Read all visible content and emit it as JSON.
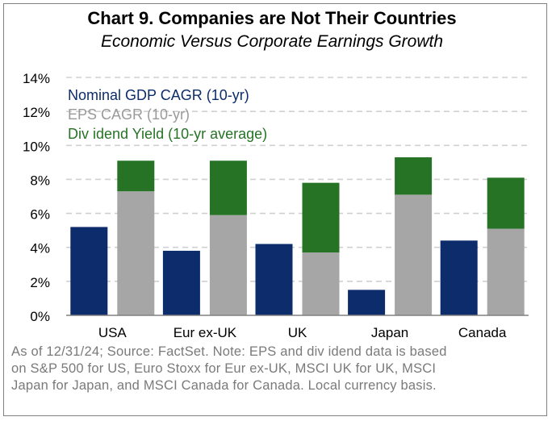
{
  "title": "Chart 9. Companies are Not Their Countries",
  "subtitle": "Economic Versus Corporate Earnings Growth",
  "note_lines": [
    "As of 12/31/24; Source: FactSet. Note: EPS and div idend data is based",
    "on S&P 500 for US, Euro Stoxx for Eur ex-UK, MSCI UK for UK, MSCI",
    "Japan for Japan, and MSCI Canada for Canada. Local currency basis."
  ],
  "colors": {
    "gdp": "#0d2c6b",
    "eps": "#a6a6a6",
    "div": "#267326",
    "grid": "#d0d0d0"
  },
  "chart_data": {
    "type": "bar",
    "stacked_second_bar": true,
    "categories": [
      "USA",
      "Eur ex-UK",
      "UK",
      "Japan",
      "Canada"
    ],
    "series": [
      {
        "name": "Nominal GDP CAGR (10-yr)",
        "values": [
          5.2,
          3.8,
          4.2,
          1.5,
          4.4
        ]
      },
      {
        "name": "EPS CAGR (10-yr)",
        "values": [
          7.3,
          5.9,
          3.7,
          7.1,
          5.1
        ]
      },
      {
        "name": "Div idend Yield (10-yr average)",
        "values": [
          1.8,
          3.2,
          4.1,
          2.2,
          3.0
        ]
      }
    ],
    "yticks": [
      "0%",
      "2%",
      "4%",
      "6%",
      "8%",
      "10%",
      "12%",
      "14%"
    ],
    "ylim": [
      0,
      14
    ],
    "grid": "dashed",
    "legend": "top-left"
  }
}
